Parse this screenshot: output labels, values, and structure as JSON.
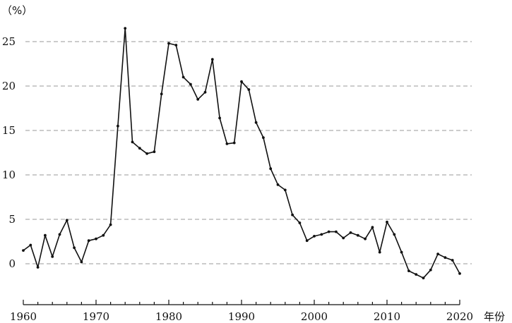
{
  "chart_data": {
    "type": "line",
    "ylabel": "（%）",
    "xlabel": "年份",
    "xlim": [
      1960,
      2020
    ],
    "ylim": [
      -2.5,
      27.5
    ],
    "x_ticks": [
      1960,
      1970,
      1980,
      1990,
      2000,
      2010,
      2020
    ],
    "y_ticks": [
      0,
      5,
      10,
      15,
      20,
      25
    ],
    "grid": "horizontal dashed",
    "series": [
      {
        "x": [
          1960,
          1961,
          1962,
          1963,
          1964,
          1965,
          1966,
          1967,
          1968,
          1969,
          1970,
          1971,
          1972,
          1973,
          1974,
          1975,
          1976,
          1977,
          1978,
          1979,
          1980,
          1981,
          1982,
          1983,
          1984,
          1985,
          1986,
          1987,
          1988,
          1989,
          1990,
          1991,
          1992,
          1993,
          1994,
          1995,
          1996,
          1997,
          1998,
          1999,
          2000,
          2001,
          2002,
          2003,
          2004,
          2005,
          2006,
          2007,
          2008,
          2009,
          2010,
          2011,
          2012,
          2013,
          2014,
          2015,
          2016,
          2017,
          2018,
          2019,
          2020
        ],
        "values": [
          1.5,
          2.1,
          -0.4,
          3.2,
          0.8,
          3.3,
          4.9,
          1.8,
          0.2,
          2.6,
          2.8,
          3.2,
          4.4,
          15.5,
          26.5,
          13.7,
          13.0,
          12.4,
          12.6,
          19.1,
          24.8,
          24.6,
          21.0,
          20.2,
          18.5,
          19.3,
          23.0,
          16.4,
          13.5,
          13.6,
          20.5,
          19.6,
          15.9,
          14.2,
          10.7,
          8.9,
          8.3,
          5.5,
          4.6,
          2.6,
          3.1,
          3.3,
          3.6,
          3.6,
          2.9,
          3.5,
          3.2,
          2.8,
          4.1,
          1.3,
          4.7,
          3.3,
          1.3,
          -0.8,
          -1.2,
          -1.6,
          -0.7,
          1.1,
          0.7,
          0.4,
          -1.1
        ]
      }
    ]
  }
}
